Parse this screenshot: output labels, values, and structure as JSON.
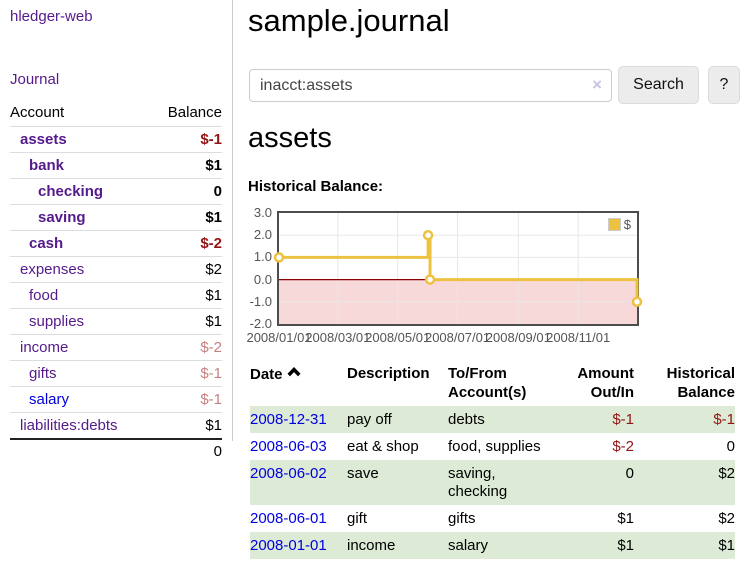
{
  "app": {
    "title": "hledger-web"
  },
  "sidebar": {
    "journal_link": "Journal",
    "accounts": {
      "headers": {
        "account": "Account",
        "balance": "Balance"
      },
      "rows": [
        {
          "name": "assets",
          "balance": "$-1",
          "level": 1,
          "bold": true,
          "neg": "strong",
          "link_color": "purple"
        },
        {
          "name": "bank",
          "balance": "$1",
          "level": 2,
          "bold": true,
          "neg": "none",
          "link_color": "purple"
        },
        {
          "name": "checking",
          "balance": "0",
          "level": 3,
          "bold": true,
          "neg": "none",
          "link_color": "purple"
        },
        {
          "name": "saving",
          "balance": "$1",
          "level": 3,
          "bold": true,
          "neg": "none",
          "link_color": "purple"
        },
        {
          "name": "cash",
          "balance": "$-2",
          "level": 2,
          "bold": true,
          "neg": "strong",
          "link_color": "purple"
        },
        {
          "name": "expenses",
          "balance": "$2",
          "level": 1,
          "bold": false,
          "neg": "none",
          "link_color": "purple"
        },
        {
          "name": "food",
          "balance": "$1",
          "level": 2,
          "bold": false,
          "neg": "none",
          "link_color": "purple"
        },
        {
          "name": "supplies",
          "balance": "$1",
          "level": 2,
          "bold": false,
          "neg": "none",
          "link_color": "purple"
        },
        {
          "name": "income",
          "balance": "$-2",
          "level": 1,
          "bold": false,
          "neg": "soft",
          "link_color": "purple"
        },
        {
          "name": "gifts",
          "balance": "$-1",
          "level": 2,
          "bold": false,
          "neg": "soft",
          "link_color": "purple"
        },
        {
          "name": "salary",
          "balance": "$-1",
          "level": 2,
          "bold": false,
          "neg": "soft",
          "link_color": "blue"
        },
        {
          "name": "liabilities:debts",
          "balance": "$1",
          "level": 1,
          "bold": false,
          "neg": "none",
          "link_color": "purple"
        }
      ],
      "total": "0"
    }
  },
  "main": {
    "title": "sample.journal",
    "search": {
      "value": "inacct:assets",
      "clear_icon": "×",
      "search_button": "Search",
      "help_button": "?"
    },
    "account_heading": "assets",
    "chart_heading": "Historical Balance:"
  },
  "chart_data": {
    "type": "line",
    "line_style": "step",
    "title": "Historical Balance:",
    "legend": [
      {
        "label": "$",
        "color": "#EDC240"
      }
    ],
    "legend_position": "top-right",
    "ylim": [
      -2,
      3
    ],
    "x_range_days": [
      0,
      365
    ],
    "yticks": [
      {
        "value": 3,
        "label": "3.0"
      },
      {
        "value": 2,
        "label": "2.0"
      },
      {
        "value": 1,
        "label": "1.0"
      },
      {
        "value": 0,
        "label": "0.0"
      },
      {
        "value": -1,
        "label": "-1.0"
      },
      {
        "value": -2,
        "label": "-2.0"
      }
    ],
    "xticks": [
      {
        "day": 0,
        "label": "2008/01/01"
      },
      {
        "day": 60,
        "label": "2008/03/01"
      },
      {
        "day": 121,
        "label": "2008/05/01"
      },
      {
        "day": 182,
        "label": "2008/07/01"
      },
      {
        "day": 244,
        "label": "2008/09/01"
      },
      {
        "day": 305,
        "label": "2008/11/01"
      }
    ],
    "series": [
      {
        "name": "$",
        "color": "#EDC240",
        "points": [
          {
            "date": "2008-01-01",
            "day": 0,
            "value": 1
          },
          {
            "date": "2008-06-01",
            "day": 152,
            "value": 2
          },
          {
            "date": "2008-06-03",
            "day": 154,
            "value": 0
          },
          {
            "date": "2008-12-31",
            "day": 365,
            "value": -1
          }
        ]
      }
    ],
    "grid": true,
    "gridline_color": "#e8e8e8",
    "negative_region_fill": "#f8d9d9",
    "zero_line_color": "#8b0000"
  },
  "register": {
    "headers": {
      "date": "Date",
      "description": "Description",
      "accounts_line1": "To/From",
      "accounts_line2": "Account(s)",
      "amount_line1": "Amount",
      "amount_line2": "Out/In",
      "balance_line1": "Historical",
      "balance_line2": "Balance"
    },
    "rows": [
      {
        "date": "2008-12-31",
        "description": "pay off",
        "accounts": "debts",
        "amount": "$-1",
        "amount_neg": true,
        "balance": "$-1",
        "balance_neg": true
      },
      {
        "date": "2008-06-03",
        "description": "eat & shop",
        "accounts": "food, supplies",
        "amount": "$-2",
        "amount_neg": true,
        "balance": "0",
        "balance_neg": false
      },
      {
        "date": "2008-06-02",
        "description": "save",
        "accounts": "saving, checking",
        "amount": "0",
        "amount_neg": false,
        "balance": "$2",
        "balance_neg": false
      },
      {
        "date": "2008-06-01",
        "description": "gift",
        "accounts": "gifts",
        "amount": "$1",
        "amount_neg": false,
        "balance": "$2",
        "balance_neg": false
      },
      {
        "date": "2008-01-01",
        "description": "income",
        "accounts": "salary",
        "amount": "$1",
        "amount_neg": false,
        "balance": "$1",
        "balance_neg": false
      }
    ]
  },
  "colors": {
    "link_purple": "#551a8b",
    "link_blue": "#0000dd",
    "negative_strong": "#941414",
    "negative_soft": "#c5817e",
    "row_stripe_green": "#dcead6",
    "chart_line": "#EDC240"
  }
}
